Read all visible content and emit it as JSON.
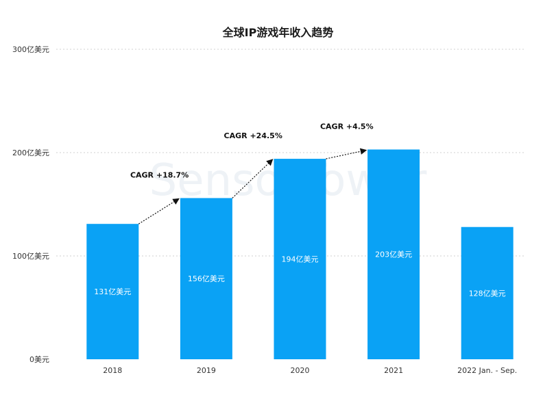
{
  "chart_data": {
    "type": "bar",
    "title": "全球IP游戏年收入趋势",
    "categories": [
      "2018",
      "2019",
      "2020",
      "2021",
      "2022 Jan. - Sep."
    ],
    "values": [
      131,
      156,
      194,
      203,
      128
    ],
    "value_labels": [
      "131亿美元",
      "156亿美元",
      "194亿美元",
      "203亿美元",
      "128亿美元"
    ],
    "ylim": [
      0,
      300
    ],
    "yticks": [
      0,
      100,
      200,
      300
    ],
    "ytick_labels": [
      "0美元",
      "100亿美元",
      "200亿美元",
      "300亿美元"
    ],
    "xlabel": "",
    "ylabel": "",
    "grid": true,
    "bar_color": "#0aa2f5",
    "annotations": [
      {
        "from": "2018",
        "to": "2019",
        "text": "CAGR +18.7%"
      },
      {
        "from": "2019",
        "to": "2020",
        "text": "CAGR +24.5%"
      },
      {
        "from": "2020",
        "to": "2021",
        "text": "CAGR +4.5%"
      }
    ]
  },
  "watermark": "SensorTower"
}
